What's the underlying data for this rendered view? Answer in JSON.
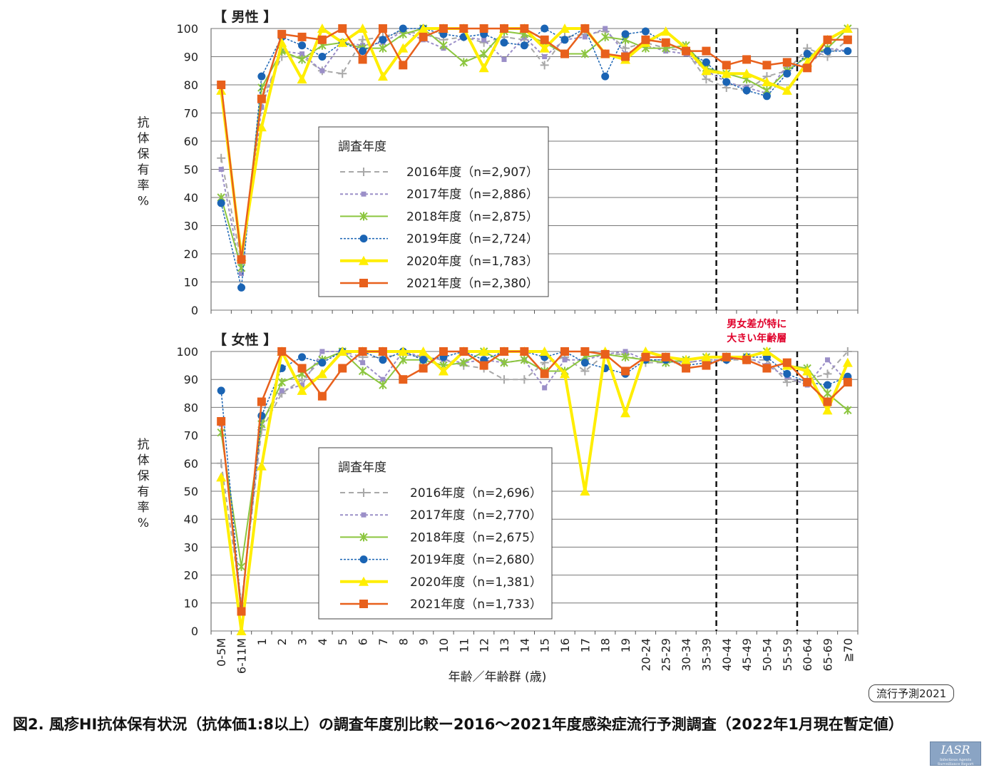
{
  "caption": "図2. 風疹HI抗体保有状況（抗体価1:8以上）の調査年度別比較ー2016〜2021年度感染症流行予測調査（2022年1月現在暫定値）",
  "badge": "流行予測2021",
  "logo": {
    "text": "IASR",
    "subtext": "Infectious Agents Surveillance Report"
  },
  "colors": {
    "s2016": "#a8a8a8",
    "s2017": "#9b8fc8",
    "s2018": "#8cc63f",
    "s2019": "#1a64b4",
    "s2020": "#ffee00",
    "s2021": "#e8601c",
    "annotation": "#e0002a"
  },
  "annotation": {
    "lines": [
      "男女差が特に",
      "大きい年齢層"
    ],
    "range": [
      "40-44",
      "55-59"
    ]
  },
  "chart_data": [
    {
      "type": "line",
      "title": "【 男性 】",
      "ylabel": "抗体保有率（%）",
      "xlabel": "年齢／年齢群 (歳)",
      "ylim": [
        0,
        100
      ],
      "yticks": [
        0,
        10,
        20,
        30,
        40,
        50,
        60,
        70,
        80,
        90,
        100
      ],
      "legend_title": "調査年度",
      "categories": [
        "0-5M",
        "6-11M",
        "1",
        "2",
        "3",
        "4",
        "5",
        "6",
        "7",
        "8",
        "9",
        "10",
        "11",
        "12",
        "13",
        "14",
        "15",
        "16",
        "17",
        "18",
        "19",
        "20-24",
        "25-29",
        "30-34",
        "35-39",
        "40-44",
        "45-49",
        "50-54",
        "55-59",
        "60-64",
        "65-69",
        "≧70"
      ],
      "series": [
        {
          "name": "2016年度（n=2,907）",
          "values": [
            54,
            17,
            75,
            90,
            90,
            85,
            84,
            96,
            97,
            99,
            98,
            96,
            97,
            95,
            97,
            96,
            87,
            97,
            98,
            99,
            93,
            95,
            93,
            92,
            82,
            79,
            78,
            83,
            85,
            93,
            90,
            96
          ]
        },
        {
          "name": "2017年度（n=2,886）",
          "values": [
            50,
            13,
            72,
            92,
            91,
            85,
            95,
            94,
            95,
            99,
            96,
            93,
            97,
            96,
            89,
            97,
            90,
            96,
            97,
            100,
            91,
            94,
            92,
            91,
            85,
            81,
            79,
            77,
            87,
            87,
            93,
            92
          ]
        },
        {
          "name": "2018年度（n=2,875）",
          "values": [
            40,
            15,
            79,
            92,
            89,
            94,
            95,
            93,
            93,
            98,
            100,
            94,
            88,
            91,
            99,
            98,
            95,
            91,
            91,
            97,
            96,
            93,
            93,
            94,
            86,
            84,
            82,
            78,
            85,
            90,
            93,
            100
          ]
        },
        {
          "name": "2019年度（n=2,724）",
          "values": [
            38,
            8,
            83,
            97,
            94,
            90,
            95,
            92,
            96,
            100,
            100,
            98,
            97,
            98,
            95,
            94,
            100,
            96,
            100,
            83,
            98,
            99,
            95,
            92,
            88,
            81,
            78,
            76,
            84,
            91,
            92,
            92
          ]
        },
        {
          "name": "2020年度（n=1,783）",
          "values": [
            78,
            19,
            65,
            95,
            82,
            100,
            95,
            100,
            83,
            93,
            100,
            100,
            100,
            86,
            100,
            100,
            93,
            100,
            100,
            91,
            89,
            95,
            99,
            93,
            85,
            84,
            84,
            81,
            78,
            88,
            96,
            100
          ]
        },
        {
          "name": "2021年度（n=2,380）",
          "values": [
            80,
            18,
            75,
            98,
            97,
            96,
            100,
            89,
            100,
            87,
            97,
            100,
            100,
            100,
            100,
            100,
            96,
            91,
            100,
            91,
            90,
            96,
            95,
            92,
            92,
            87,
            89,
            87,
            88,
            86,
            96,
            96
          ]
        }
      ]
    },
    {
      "type": "line",
      "title": "【 女性 】",
      "ylabel": "抗体保有率（%）",
      "xlabel": "年齢／年齢群 (歳)",
      "ylim": [
        0,
        100
      ],
      "yticks": [
        0,
        10,
        20,
        30,
        40,
        50,
        60,
        70,
        80,
        90,
        100
      ],
      "legend_title": "調査年度",
      "categories": [
        "0-5M",
        "6-11M",
        "1",
        "2",
        "3",
        "4",
        "5",
        "6",
        "7",
        "8",
        "9",
        "10",
        "11",
        "12",
        "13",
        "14",
        "15",
        "16",
        "17",
        "18",
        "19",
        "20-24",
        "25-29",
        "30-34",
        "35-39",
        "40-44",
        "45-49",
        "50-54",
        "55-59",
        "60-64",
        "65-69",
        "≧70"
      ],
      "series": [
        {
          "name": "2016年度（n=2,696）",
          "values": [
            60,
            10,
            72,
            85,
            90,
            97,
            100,
            98,
            98,
            99,
            98,
            97,
            95,
            94,
            90,
            90,
            96,
            98,
            93,
            99,
            99,
            96,
            96,
            96,
            97,
            97,
            97,
            97,
            89,
            90,
            92,
            100
          ]
        },
        {
          "name": "2017年度（n=2,770）",
          "values": [
            74,
            9,
            75,
            86,
            88,
            100,
            100,
            96,
            90,
            100,
            98,
            97,
            96,
            97,
            96,
            97,
            87,
            97,
            97,
            99,
            100,
            97,
            97,
            96,
            97,
            97,
            98,
            95,
            91,
            88,
            97,
            89
          ]
        },
        {
          "name": "2018年度（n=2,675）",
          "values": [
            71,
            23,
            74,
            89,
            92,
            97,
            100,
            93,
            88,
            97,
            97,
            95,
            96,
            100,
            96,
            97,
            93,
            93,
            98,
            99,
            98,
            97,
            96,
            97,
            98,
            98,
            98,
            100,
            95,
            94,
            85,
            79
          ]
        },
        {
          "name": "2019年度（n=2,680）",
          "values": [
            86,
            8,
            77,
            94,
            98,
            96,
            100,
            100,
            97,
            100,
            97,
            98,
            100,
            97,
            100,
            100,
            98,
            100,
            96,
            94,
            92,
            97,
            97,
            95,
            96,
            97,
            98,
            98,
            92,
            89,
            88,
            91
          ]
        },
        {
          "name": "2020年度（n=1,381）",
          "values": [
            55,
            0,
            59,
            100,
            86,
            92,
            100,
            100,
            100,
            100,
            100,
            93,
            100,
            100,
            100,
            100,
            100,
            92,
            50,
            100,
            78,
            100,
            98,
            97,
            98,
            98,
            98,
            100,
            95,
            93,
            79,
            96
          ]
        },
        {
          "name": "2021年度（n=1,733）",
          "values": [
            75,
            7,
            82,
            100,
            94,
            84,
            94,
            100,
            100,
            90,
            94,
            100,
            100,
            95,
            100,
            100,
            92,
            100,
            100,
            99,
            93,
            98,
            98,
            94,
            95,
            98,
            97,
            94,
            96,
            89,
            82,
            89
          ]
        }
      ]
    }
  ]
}
